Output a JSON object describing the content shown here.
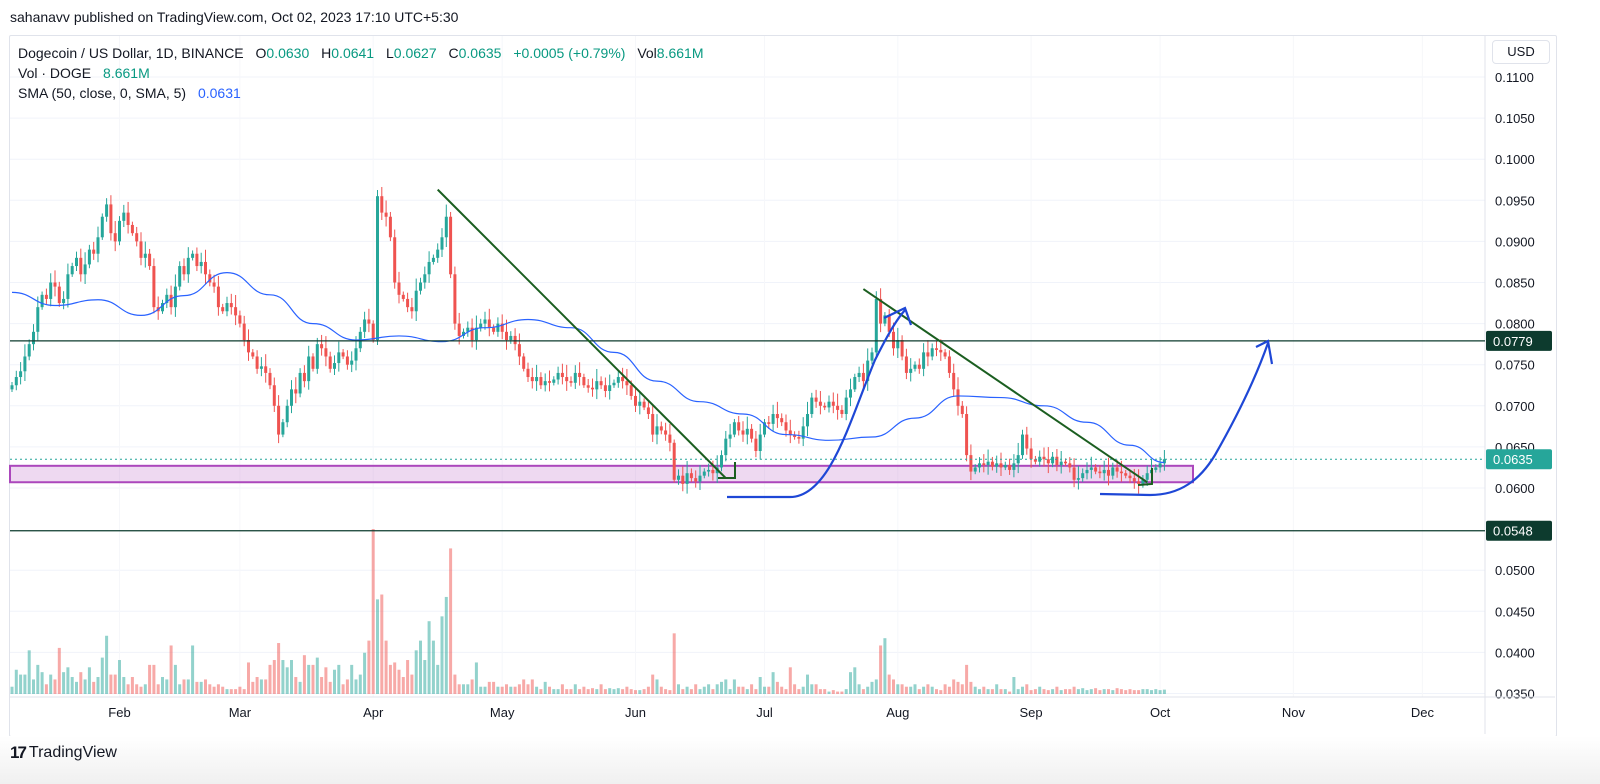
{
  "header": {
    "published": "sahanavv published on TradingView.com, Oct 02, 2023 17:10 UTC+5:30"
  },
  "legend": {
    "symbol": "Dogecoin / US Dollar, 1D, BINANCE",
    "o_label": "O",
    "o": "0.0630",
    "h_label": "H",
    "h": "0.0641",
    "l_label": "L",
    "l": "0.0627",
    "c_label": "C",
    "c": "0.0635",
    "change": "+0.0005 (+0.79%)",
    "vol_label": "Vol",
    "vol": "8.661M",
    "vol_study": "Vol · DOGE",
    "vol_study_value": "8.661M",
    "sma_study": "SMA (50, close, 0, SMA, 5)",
    "sma_value": "0.0631"
  },
  "axis": {
    "currency": "USD"
  },
  "footer": {
    "brand": "TradingView"
  },
  "colors": {
    "up": "#26a69a",
    "down": "#ef5350",
    "sma": "#2962ff",
    "trendline": "#1b5e20",
    "hline": "#0d3b2e",
    "zone": "#ab47bc",
    "drawing": "#1e47d6",
    "last_price": "#26a69a"
  },
  "chart_data": {
    "type": "candlestick",
    "symbol": "DOGE/USD",
    "interval": "1D",
    "start_date": "2023-01-07",
    "ylim": [
      0.035,
      0.111
    ],
    "y_ticks": [
      "0.1100",
      "0.1050",
      "0.1000",
      "0.0950",
      "0.0900",
      "0.0850",
      "0.0800",
      "0.0750",
      "0.0700",
      "0.0650",
      "0.0600",
      "0.0500",
      "0.0450",
      "0.0400",
      "0.0350"
    ],
    "x_ticks": [
      {
        "label": "Feb",
        "date": "2023-02-01"
      },
      {
        "label": "Mar",
        "date": "2023-03-01"
      },
      {
        "label": "Apr",
        "date": "2023-04-01"
      },
      {
        "label": "May",
        "date": "2023-05-01"
      },
      {
        "label": "Jun",
        "date": "2023-06-01"
      },
      {
        "label": "Jul",
        "date": "2023-07-01"
      },
      {
        "label": "Aug",
        "date": "2023-08-01"
      },
      {
        "label": "Sep",
        "date": "2023-09-01"
      },
      {
        "label": "Oct",
        "date": "2023-10-01"
      },
      {
        "label": "Nov",
        "date": "2023-11-01"
      },
      {
        "label": "Dec",
        "date": "2023-12-01"
      }
    ],
    "grid": true,
    "closes": [
      0.0725,
      0.0735,
      0.0742,
      0.076,
      0.0775,
      0.079,
      0.082,
      0.0835,
      0.083,
      0.085,
      0.0845,
      0.0825,
      0.083,
      0.086,
      0.087,
      0.088,
      0.086,
      0.0872,
      0.089,
      0.0885,
      0.0905,
      0.093,
      0.0945,
      0.091,
      0.09,
      0.0925,
      0.0935,
      0.092,
      0.091,
      0.09,
      0.088,
      0.0885,
      0.087,
      0.082,
      0.0815,
      0.0825,
      0.0835,
      0.082,
      0.0845,
      0.087,
      0.086,
      0.088,
      0.0885,
      0.087,
      0.0875,
      0.086,
      0.085,
      0.0845,
      0.082,
      0.0815,
      0.0825,
      0.082,
      0.081,
      0.08,
      0.078,
      0.0765,
      0.076,
      0.0745,
      0.0748,
      0.074,
      0.0725,
      0.07,
      0.0665,
      0.068,
      0.07,
      0.072,
      0.0715,
      0.074,
      0.073,
      0.076,
      0.0745,
      0.0775,
      0.077,
      0.076,
      0.0745,
      0.0752,
      0.0765,
      0.076,
      0.075,
      0.0755,
      0.077,
      0.079,
      0.0805,
      0.08,
      0.078,
      0.0955,
      0.0935,
      0.093,
      0.0905,
      0.085,
      0.0835,
      0.083,
      0.082,
      0.0815,
      0.084,
      0.085,
      0.086,
      0.0875,
      0.088,
      0.089,
      0.0905,
      0.093,
      0.086,
      0.08,
      0.0785,
      0.079,
      0.0795,
      0.078,
      0.0795,
      0.08,
      0.0805,
      0.0795,
      0.079,
      0.08,
      0.079,
      0.078,
      0.0785,
      0.0775,
      0.076,
      0.0745,
      0.0735,
      0.073,
      0.0735,
      0.0725,
      0.073,
      0.0728,
      0.0732,
      0.074,
      0.0735,
      0.073,
      0.0728,
      0.074,
      0.0735,
      0.0725,
      0.0722,
      0.072,
      0.073,
      0.0725,
      0.0718,
      0.0725,
      0.0728,
      0.0735,
      0.073,
      0.0725,
      0.0712,
      0.07,
      0.0705,
      0.0698,
      0.069,
      0.0665,
      0.0675,
      0.067,
      0.0665,
      0.0655,
      0.061,
      0.0615,
      0.0605,
      0.0618,
      0.0612,
      0.0608,
      0.0615,
      0.062,
      0.0622,
      0.0618,
      0.0625,
      0.064,
      0.066,
      0.0665,
      0.068,
      0.067,
      0.0665,
      0.0672,
      0.066,
      0.0645,
      0.0665,
      0.068,
      0.0678,
      0.069,
      0.0685,
      0.068,
      0.067,
      0.0665,
      0.0662,
      0.066,
      0.0675,
      0.069,
      0.071,
      0.0705,
      0.07,
      0.0698,
      0.0705,
      0.07,
      0.0695,
      0.069,
      0.071,
      0.072,
      0.0735,
      0.074,
      0.073,
      0.0755,
      0.0765,
      0.083,
      0.08,
      0.081,
      0.079,
      0.077,
      0.078,
      0.076,
      0.074,
      0.0745,
      0.075,
      0.0745,
      0.0765,
      0.076,
      0.077,
      0.0768,
      0.0765,
      0.076,
      0.074,
      0.072,
      0.07,
      0.069,
      0.064,
      0.062,
      0.0625,
      0.063,
      0.0628,
      0.0632,
      0.0626,
      0.063,
      0.0625,
      0.0628,
      0.0622,
      0.063,
      0.064,
      0.0665,
      0.0648,
      0.0635,
      0.0632,
      0.0638,
      0.0635,
      0.063,
      0.0638,
      0.0628,
      0.0632,
      0.063,
      0.0625,
      0.061,
      0.0612,
      0.0618,
      0.0622,
      0.0625,
      0.062,
      0.0618,
      0.0622,
      0.0615,
      0.0625,
      0.062,
      0.0618,
      0.0615,
      0.0612,
      0.0608,
      0.0605,
      0.061,
      0.0618,
      0.0622,
      0.0625,
      0.063,
      0.0635
    ],
    "volumes_m": [
      15,
      50,
      40,
      40,
      90,
      30,
      60,
      45,
      20,
      40,
      30,
      95,
      45,
      55,
      35,
      25,
      45,
      30,
      55,
      25,
      35,
      75,
      120,
      40,
      40,
      70,
      35,
      20,
      35,
      20,
      15,
      20,
      60,
      60,
      20,
      35,
      30,
      100,
      60,
      20,
      30,
      30,
      100,
      25,
      25,
      30,
      20,
      15,
      20,
      15,
      10,
      10,
      10,
      15,
      10,
      65,
      25,
      35,
      30,
      30,
      60,
      70,
      105,
      70,
      55,
      70,
      35,
      25,
      80,
      60,
      60,
      75,
      35,
      55,
      25,
      50,
      60,
      20,
      30,
      60,
      30,
      40,
      85,
      110,
      340,
      195,
      205,
      110,
      60,
      65,
      50,
      35,
      70,
      40,
      90,
      110,
      70,
      150,
      110,
      60,
      160,
      200,
      300,
      40,
      20,
      20,
      20,
      30,
      65,
      15,
      15,
      25,
      25,
      15,
      15,
      20,
      15,
      15,
      20,
      30,
      20,
      30,
      15,
      10,
      25,
      15,
      10,
      10,
      20,
      10,
      10,
      20,
      10,
      15,
      10,
      12,
      10,
      20,
      10,
      12,
      10,
      12,
      10,
      15,
      10,
      8,
      8,
      10,
      15,
      40,
      30,
      15,
      10,
      8,
      125,
      20,
      10,
      15,
      10,
      20,
      10,
      15,
      20,
      10,
      20,
      25,
      30,
      10,
      30,
      15,
      15,
      10,
      20,
      10,
      35,
      15,
      15,
      45,
      25,
      15,
      10,
      55,
      20,
      10,
      15,
      40,
      20,
      20,
      10,
      10,
      5,
      8,
      5,
      5,
      10,
      45,
      55,
      20,
      10,
      15,
      25,
      30,
      100,
      115,
      40,
      30,
      20,
      20,
      15,
      15,
      20,
      10,
      15,
      20,
      15,
      10,
      8,
      20,
      15,
      30,
      25,
      20,
      60,
      25,
      15,
      10,
      15,
      10,
      10,
      20,
      10,
      10,
      5,
      35,
      10,
      15,
      20,
      8,
      10,
      15,
      10,
      8,
      10,
      15,
      8,
      10,
      10,
      15,
      10,
      12,
      8,
      10,
      12,
      8,
      10,
      10,
      8,
      12,
      10,
      8,
      10,
      8,
      8,
      10,
      10,
      8,
      10,
      8,
      9
    ],
    "sma_50": [
      [
        "2023-01-07",
        0.0838
      ],
      [
        "2023-01-17",
        0.0822
      ],
      [
        "2023-01-27",
        0.0829
      ],
      [
        "2023-02-06",
        0.081
      ],
      [
        "2023-02-16",
        0.0834
      ],
      [
        "2023-02-26",
        0.0862
      ],
      [
        "2023-03-08",
        0.0835
      ],
      [
        "2023-03-18",
        0.08
      ],
      [
        "2023-03-28",
        0.078
      ],
      [
        "2023-04-07",
        0.0785
      ],
      [
        "2023-04-17",
        0.0778
      ],
      [
        "2023-04-27",
        0.0795
      ],
      [
        "2023-05-07",
        0.0805
      ],
      [
        "2023-05-17",
        0.0795
      ],
      [
        "2023-05-27",
        0.0765
      ],
      [
        "2023-06-06",
        0.073
      ],
      [
        "2023-06-16",
        0.0705
      ],
      [
        "2023-06-26",
        0.069
      ],
      [
        "2023-07-06",
        0.0665
      ],
      [
        "2023-07-16",
        0.0658
      ],
      [
        "2023-07-26",
        0.0662
      ],
      [
        "2023-08-05",
        0.0685
      ],
      [
        "2023-08-15",
        0.0712
      ],
      [
        "2023-08-25",
        0.071
      ],
      [
        "2023-09-04",
        0.07
      ],
      [
        "2023-09-14",
        0.068
      ],
      [
        "2023-09-24",
        0.0652
      ],
      [
        "2023-10-02",
        0.0631
      ]
    ],
    "last_price": {
      "value": 0.0635,
      "label": "0.0635"
    },
    "horizontal_lines": [
      {
        "value": 0.0779,
        "label": "0.0779"
      },
      {
        "value": 0.0548,
        "label": "0.0548"
      }
    ],
    "support_zone": {
      "low": 0.0607,
      "high": 0.0627
    },
    "trendlines": [
      {
        "from": [
          "2023-04-16",
          0.0963
        ],
        "to": [
          "2023-06-22",
          0.0612
        ]
      },
      {
        "from": [
          "2023-07-24",
          0.0842
        ],
        "to": [
          "2023-09-28",
          0.0607
        ]
      }
    ]
  }
}
